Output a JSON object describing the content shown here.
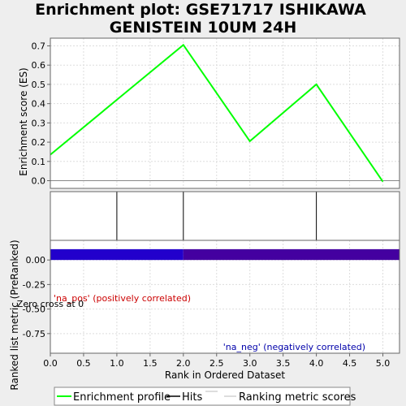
{
  "chart_data": {
    "type": "line",
    "title_lines": [
      "Enrichment plot: GSE71717 ISHIKAWA",
      "GENISTEIN 10UM 24H"
    ],
    "xlabel": "Rank in Ordered Dataset",
    "top_ylabel": "Enrichment score (ES)",
    "bottom_ylabel": "Ranked list metric (PreRanked)",
    "xlim": [
      0,
      5.25
    ],
    "x_ticks": [
      0.0,
      0.5,
      1.0,
      1.5,
      2.0,
      2.5,
      3.0,
      3.5,
      4.0,
      4.5,
      5.0
    ],
    "x_tick_labels": [
      "0.0",
      "0.5",
      "1.0",
      "1.5",
      "2.0",
      "2.5",
      "3.0",
      "3.5",
      "4.0",
      "4.5",
      "5.0"
    ],
    "top_ylim": [
      -0.04,
      0.74
    ],
    "top_y_ticks": [
      0.0,
      0.1,
      0.2,
      0.3,
      0.4,
      0.5,
      0.6,
      0.7
    ],
    "top_y_tick_labels": [
      "0.0",
      "0.1",
      "0.2",
      "0.3",
      "0.4",
      "0.5",
      "0.6",
      "0.7"
    ],
    "bottom_ylim": [
      -0.95,
      0.2
    ],
    "bottom_y_ticks": [
      0.0,
      -0.25,
      -0.5,
      -0.75
    ],
    "bottom_y_tick_labels": [
      "0.00",
      "-0.25",
      "-0.50",
      "-0.75"
    ],
    "grid": true,
    "series": [
      {
        "name": "Enrichment profile",
        "color": "#00ff00",
        "x": [
          0,
          1,
          2,
          3,
          4,
          5
        ],
        "y": [
          0.135,
          0.42,
          0.705,
          0.205,
          0.5,
          -0.005
        ]
      }
    ],
    "hits": [
      1,
      2,
      4
    ],
    "ranking_metric": [
      {
        "x0": 0,
        "x1": 2,
        "color": "#2200cc"
      },
      {
        "x0": 2,
        "x1": 5.25,
        "color": "#4400a0"
      }
    ],
    "metric_band": [
      0.0,
      0.11
    ],
    "annotations": {
      "pos_label": "'na_pos' (positively correlated)",
      "pos_color": "#cc0000",
      "neg_label": "'na_neg' (negatively correlated)",
      "neg_color": "#0000aa",
      "zero_cross": "Zero cross at 0"
    },
    "legend_placement": "bottom",
    "legend": [
      {
        "label": "Enrichment profile",
        "color": "#00ff00"
      },
      {
        "label": "Hits",
        "color": "#000000"
      },
      {
        "label": "Ranking metric scores",
        "color": "#bbbbbb"
      }
    ]
  }
}
